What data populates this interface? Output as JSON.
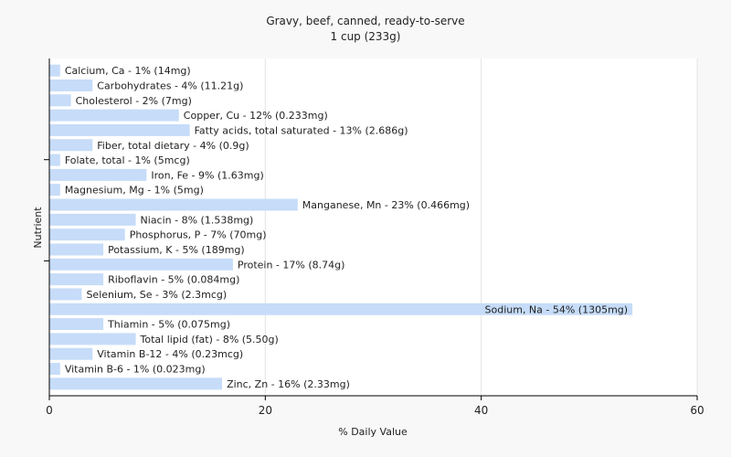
{
  "chart_data": {
    "type": "bar",
    "orientation": "horizontal",
    "title": "Gravy, beef, canned, ready-to-serve",
    "subtitle": "1 cup (233g)",
    "xlabel": "% Daily Value",
    "ylabel": "Nutrient",
    "xlim": [
      0,
      60
    ],
    "xticks": [
      0,
      20,
      40,
      60
    ],
    "grid": true,
    "bar_color": "#c6dcf8",
    "categories": [
      "Calcium, Ca",
      "Carbohydrates",
      "Cholesterol",
      "Copper, Cu",
      "Fatty acids, total saturated",
      "Fiber, total dietary",
      "Folate, total",
      "Iron, Fe",
      "Magnesium, Mg",
      "Manganese, Mn",
      "Niacin",
      "Phosphorus, P",
      "Potassium, K",
      "Protein",
      "Riboflavin",
      "Selenium, Se",
      "Sodium, Na",
      "Thiamin",
      "Total lipid (fat)",
      "Vitamin B-12",
      "Vitamin B-6",
      "Zinc, Zn"
    ],
    "values": [
      1,
      4,
      2,
      12,
      13,
      4,
      1,
      9,
      1,
      23,
      8,
      7,
      5,
      17,
      5,
      3,
      54,
      5,
      8,
      4,
      1,
      16
    ],
    "labels": [
      "Calcium, Ca - 1% (14mg)",
      "Carbohydrates - 4% (11.21g)",
      "Cholesterol - 2% (7mg)",
      "Copper, Cu - 12% (0.233mg)",
      "Fatty acids, total saturated - 13% (2.686g)",
      "Fiber, total dietary - 4% (0.9g)",
      "Folate, total - 1% (5mcg)",
      "Iron, Fe - 9% (1.63mg)",
      "Magnesium, Mg - 1% (5mg)",
      "Manganese, Mn - 23% (0.466mg)",
      "Niacin - 8% (1.538mg)",
      "Phosphorus, P - 7% (70mg)",
      "Potassium, K - 5% (189mg)",
      "Protein - 17% (8.74g)",
      "Riboflavin - 5% (0.084mg)",
      "Selenium, Se - 3% (2.3mcg)",
      "Sodium, Na - 54% (1305mg)",
      "Thiamin - 5% (0.075mg)",
      "Total lipid (fat) - 8% (5.50g)",
      "Vitamin B-12 - 4% (0.23mcg)",
      "Vitamin B-6 - 1% (0.023mg)",
      "Zinc, Zn - 16% (2.33mg)"
    ]
  }
}
